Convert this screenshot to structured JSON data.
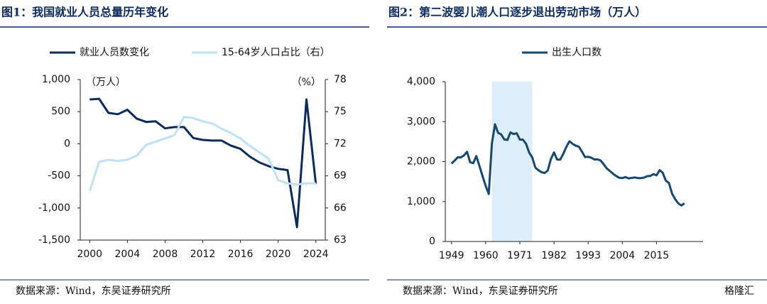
{
  "chart_data": [
    {
      "type": "line",
      "title": "图1：我国就业人员总量历年变化",
      "x": [
        2000,
        2001,
        2002,
        2003,
        2004,
        2005,
        2006,
        2007,
        2008,
        2009,
        2010,
        2011,
        2012,
        2013,
        2014,
        2015,
        2016,
        2017,
        2018,
        2019,
        2020,
        2021,
        2022,
        2023,
        2024
      ],
      "series": [
        {
          "name": "就业人员数变化",
          "color": "#0d2a5c",
          "values": [
            690,
            700,
            480,
            460,
            530,
            390,
            340,
            350,
            240,
            260,
            260,
            90,
            60,
            50,
            50,
            -30,
            -80,
            -200,
            -290,
            -350,
            -390,
            -410,
            -1300,
            690,
            -620
          ]
        },
        {
          "name": "15-64岁人口占比（右）",
          "color": "#bfe0f5",
          "axis": "y2",
          "values": [
            67.6,
            70.3,
            70.5,
            70.4,
            70.5,
            70.9,
            71.9,
            72.2,
            72.5,
            72.8,
            74.5,
            74.4,
            74.1,
            73.9,
            73.4,
            73.0,
            72.5,
            71.8,
            71.2,
            70.6,
            68.6,
            68.3,
            68.2,
            68.3,
            68.3
          ]
        }
      ],
      "xlim": [
        1999,
        2025
      ],
      "xticks": [
        2000,
        2004,
        2008,
        2012,
        2016,
        2020,
        2024
      ],
      "ylim": [
        -1500,
        1000
      ],
      "yticks": [
        {
          "value": 1000,
          "label": "1,000"
        },
        500,
        0,
        -500,
        {
          "value": -1000,
          "label": "-1,000"
        },
        {
          "value": -1500,
          "label": "-1,500"
        }
      ],
      "y2lim": [
        63,
        78
      ],
      "y2ticks": [
        78,
        75,
        72,
        69,
        66,
        63
      ],
      "y_unit": "（万人）",
      "y2_unit": "（%）",
      "source": "数据来源：Wind，东吴证券研究所"
    },
    {
      "type": "line",
      "title": "图2：第二波婴儿潮人口逐步退出劳动市场（万人）",
      "x": [
        1949,
        1950,
        1951,
        1952,
        1953,
        1954,
        1955,
        1956,
        1957,
        1958,
        1959,
        1960,
        1961,
        1962,
        1963,
        1964,
        1965,
        1966,
        1967,
        1968,
        1969,
        1970,
        1971,
        1972,
        1973,
        1974,
        1975,
        1976,
        1977,
        1978,
        1979,
        1980,
        1981,
        1982,
        1983,
        1984,
        1985,
        1986,
        1987,
        1988,
        1989,
        1990,
        1991,
        1992,
        1993,
        1994,
        1995,
        1996,
        1997,
        1998,
        1999,
        2000,
        2001,
        2002,
        2003,
        2004,
        2005,
        2006,
        2007,
        2008,
        2009,
        2010,
        2011,
        2012,
        2013,
        2014,
        2015,
        2016,
        2017,
        2018,
        2019,
        2020,
        2021,
        2022,
        2023,
        2024
      ],
      "series": [
        {
          "name": "出生人口数",
          "color": "#17496e",
          "values": [
            1950,
            2023,
            2107,
            2105,
            2151,
            2245,
            1984,
            1961,
            2138,
            1889,
            1635,
            1389,
            1187,
            2451,
            2934,
            2721,
            2679,
            2554,
            2543,
            2731,
            2690,
            2710,
            2551,
            2550,
            2447,
            2226,
            2102,
            1849,
            1783,
            1733,
            1715,
            1776,
            2064,
            2230,
            2052,
            2050,
            2196,
            2374,
            2508,
            2445,
            2396,
            2374,
            2250,
            2113,
            2120,
            2098,
            2052,
            2057,
            2028,
            1934,
            1827,
            1765,
            1696,
            1641,
            1594,
            1588,
            1612,
            1581,
            1591,
            1604,
            1587,
            1588,
            1600,
            1635,
            1640,
            1687,
            1655,
            1786,
            1723,
            1523,
            1465,
            1200,
            1062,
            956,
            902,
            954
          ]
        }
      ],
      "xlim": [
        1947,
        2030
      ],
      "xticks": [
        1949,
        1960,
        1971,
        1982,
        1993,
        2004,
        2015
      ],
      "ylim": [
        0,
        4000
      ],
      "yticks": [
        {
          "value": 4000,
          "label": "4,000"
        },
        {
          "value": 3000,
          "label": "3,000"
        },
        {
          "value": 2000,
          "label": "2,000"
        },
        {
          "value": 1000,
          "label": "1,000"
        },
        0
      ],
      "highlight": [
        1962,
        1975
      ],
      "highlight_color": "#ddeefa",
      "source": "数据来源：Wind，东吴证券研究所",
      "watermark": "格隆汇"
    }
  ]
}
